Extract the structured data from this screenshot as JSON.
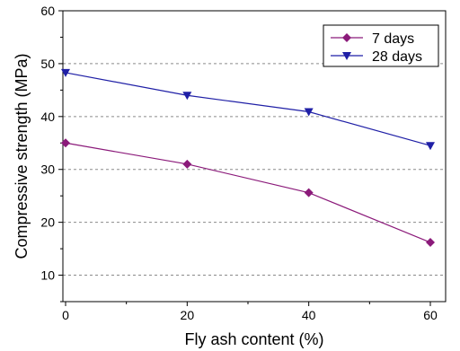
{
  "chart_data": {
    "type": "line",
    "xlabel": "Fly ash content (%)",
    "ylabel": "Compressive strength (MPa)",
    "xlim": [
      0,
      60
    ],
    "ylim": [
      5,
      60
    ],
    "x_ticks": [
      0,
      20,
      40,
      60
    ],
    "y_ticks": [
      10,
      20,
      30,
      40,
      50,
      60
    ],
    "grid": "horizontal dashed",
    "legend_position": "top-right",
    "x": [
      0,
      20,
      40,
      60
    ],
    "series": [
      {
        "name": "7 days",
        "values": [
          35.0,
          31.0,
          25.6,
          16.2
        ],
        "color": "#8b1a7a",
        "marker": "diamond"
      },
      {
        "name": "28 days",
        "values": [
          48.3,
          44.0,
          40.9,
          34.5
        ],
        "color": "#1f1fa6",
        "marker": "triangle-down"
      }
    ]
  }
}
